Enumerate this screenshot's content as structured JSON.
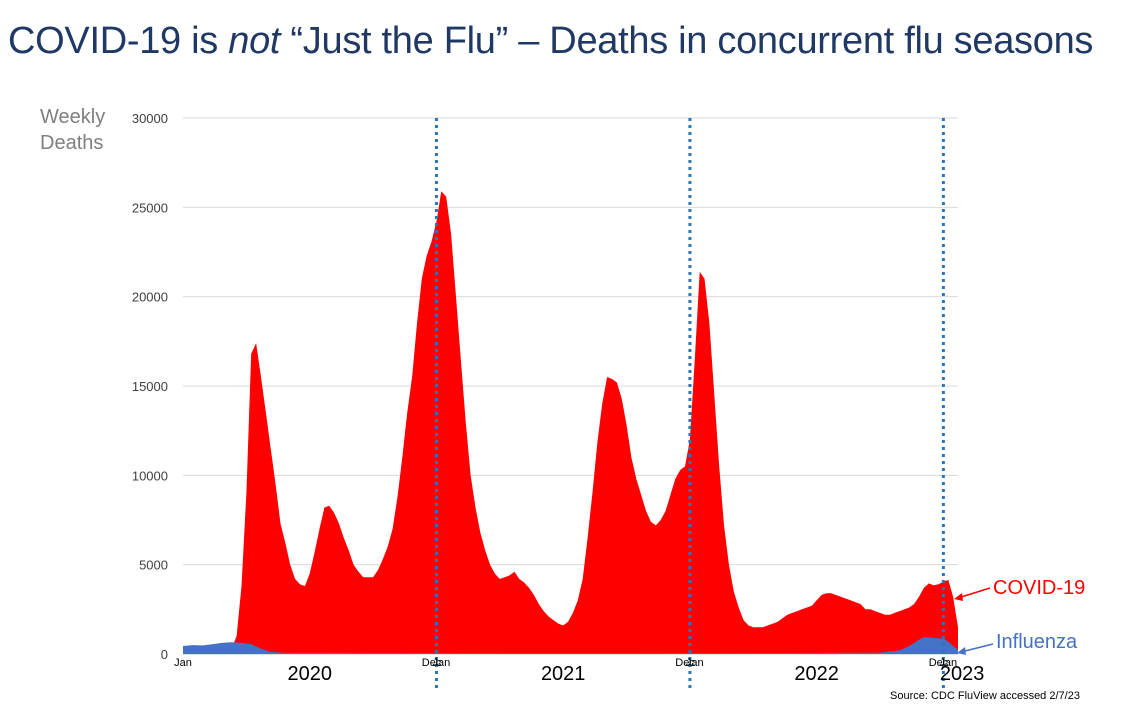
{
  "slide": {
    "title_prefix": "COVID-19 is ",
    "title_emph": "not",
    "title_suffix": " “Just the Flu” – Deaths in concurrent flu seasons",
    "source": "Source: CDC FluView accessed 2/7/23"
  },
  "chart_data": {
    "type": "area",
    "ylabel": "Weekly Deaths",
    "ylim": [
      0,
      30000
    ],
    "yticks": [
      0,
      5000,
      10000,
      15000,
      20000,
      25000,
      30000
    ],
    "grid": true,
    "x_start": "2020-01-05",
    "x_end": "2023-01-22",
    "x_tick_labels": [
      {
        "date": "2020-01-05",
        "label": "Jan"
      },
      {
        "date": "2020-12-27",
        "label": "Dec"
      },
      {
        "date": "2021-01-10",
        "label": "Jan"
      },
      {
        "date": "2021-12-26",
        "label": "Dec"
      },
      {
        "date": "2022-01-09",
        "label": "Jan"
      },
      {
        "date": "2022-12-25",
        "label": "Dec"
      },
      {
        "date": "2023-01-08",
        "label": "Jan"
      }
    ],
    "year_labels": [
      {
        "date": "2020-07-05",
        "label": "2020"
      },
      {
        "date": "2021-07-04",
        "label": "2021"
      },
      {
        "date": "2022-07-03",
        "label": "2022"
      },
      {
        "date": "2023-01-28",
        "label": "2023"
      }
    ],
    "season_markers": [
      "2021-01-03",
      "2022-01-02",
      "2023-01-01"
    ],
    "series": [
      {
        "name": "COVID-19",
        "color": "#ff0000",
        "points": [
          [
            "2020-03-01",
            0
          ],
          [
            "2020-03-15",
            300
          ],
          [
            "2020-03-22",
            1000
          ],
          [
            "2020-03-29",
            3800
          ],
          [
            "2020-04-05",
            9000
          ],
          [
            "2020-04-12",
            16800
          ],
          [
            "2020-04-19",
            17400
          ],
          [
            "2020-04-26",
            15500
          ],
          [
            "2020-05-03",
            13500
          ],
          [
            "2020-05-10",
            11500
          ],
          [
            "2020-05-17",
            9500
          ],
          [
            "2020-05-24",
            7300
          ],
          [
            "2020-05-31",
            6200
          ],
          [
            "2020-06-07",
            5000
          ],
          [
            "2020-06-14",
            4200
          ],
          [
            "2020-06-21",
            3900
          ],
          [
            "2020-06-28",
            3800
          ],
          [
            "2020-07-05",
            4500
          ],
          [
            "2020-07-12",
            5700
          ],
          [
            "2020-07-19",
            7000
          ],
          [
            "2020-07-26",
            8200
          ],
          [
            "2020-08-02",
            8300
          ],
          [
            "2020-08-09",
            7900
          ],
          [
            "2020-08-16",
            7300
          ],
          [
            "2020-08-23",
            6500
          ],
          [
            "2020-08-30",
            5800
          ],
          [
            "2020-09-06",
            5000
          ],
          [
            "2020-09-13",
            4600
          ],
          [
            "2020-09-20",
            4300
          ],
          [
            "2020-09-27",
            4300
          ],
          [
            "2020-10-04",
            4300
          ],
          [
            "2020-10-11",
            4700
          ],
          [
            "2020-10-18",
            5300
          ],
          [
            "2020-10-25",
            6000
          ],
          [
            "2020-11-01",
            7000
          ],
          [
            "2020-11-08",
            8800
          ],
          [
            "2020-11-15",
            11000
          ],
          [
            "2020-11-22",
            13500
          ],
          [
            "2020-11-29",
            15500
          ],
          [
            "2020-12-06",
            18500
          ],
          [
            "2020-12-13",
            21000
          ],
          [
            "2020-12-20",
            22300
          ],
          [
            "2020-12-27",
            23100
          ],
          [
            "2021-01-03",
            24200
          ],
          [
            "2021-01-10",
            25900
          ],
          [
            "2021-01-17",
            25600
          ],
          [
            "2021-01-24",
            23500
          ],
          [
            "2021-01-31",
            20000
          ],
          [
            "2021-02-07",
            16500
          ],
          [
            "2021-02-14",
            13000
          ],
          [
            "2021-02-21",
            10000
          ],
          [
            "2021-02-28",
            8200
          ],
          [
            "2021-03-07",
            6800
          ],
          [
            "2021-03-14",
            5800
          ],
          [
            "2021-03-21",
            5000
          ],
          [
            "2021-03-28",
            4500
          ],
          [
            "2021-04-04",
            4200
          ],
          [
            "2021-04-11",
            4300
          ],
          [
            "2021-04-18",
            4400
          ],
          [
            "2021-04-25",
            4600
          ],
          [
            "2021-05-02",
            4200
          ],
          [
            "2021-05-09",
            4000
          ],
          [
            "2021-05-16",
            3700
          ],
          [
            "2021-05-23",
            3300
          ],
          [
            "2021-05-30",
            2800
          ],
          [
            "2021-06-06",
            2400
          ],
          [
            "2021-06-13",
            2100
          ],
          [
            "2021-06-20",
            1900
          ],
          [
            "2021-06-27",
            1700
          ],
          [
            "2021-07-04",
            1600
          ],
          [
            "2021-07-11",
            1800
          ],
          [
            "2021-07-18",
            2300
          ],
          [
            "2021-07-25",
            3000
          ],
          [
            "2021-08-01",
            4200
          ],
          [
            "2021-08-08",
            6500
          ],
          [
            "2021-08-15",
            9000
          ],
          [
            "2021-08-22",
            11800
          ],
          [
            "2021-08-29",
            14000
          ],
          [
            "2021-09-05",
            15500
          ],
          [
            "2021-09-12",
            15400
          ],
          [
            "2021-09-19",
            15200
          ],
          [
            "2021-09-26",
            14300
          ],
          [
            "2021-10-03",
            12800
          ],
          [
            "2021-10-10",
            11000
          ],
          [
            "2021-10-17",
            9800
          ],
          [
            "2021-10-24",
            8900
          ],
          [
            "2021-10-31",
            8000
          ],
          [
            "2021-11-07",
            7400
          ],
          [
            "2021-11-14",
            7200
          ],
          [
            "2021-11-21",
            7500
          ],
          [
            "2021-11-28",
            8000
          ],
          [
            "2021-12-05",
            8900
          ],
          [
            "2021-12-12",
            9800
          ],
          [
            "2021-12-19",
            10300
          ],
          [
            "2021-12-26",
            10500
          ],
          [
            "2022-01-02",
            12000
          ],
          [
            "2022-01-09",
            16500
          ],
          [
            "2022-01-16",
            21400
          ],
          [
            "2022-01-23",
            21000
          ],
          [
            "2022-01-30",
            18500
          ],
          [
            "2022-02-06",
            14500
          ],
          [
            "2022-02-13",
            10500
          ],
          [
            "2022-02-20",
            7200
          ],
          [
            "2022-02-27",
            5000
          ],
          [
            "2022-03-06",
            3500
          ],
          [
            "2022-03-13",
            2600
          ],
          [
            "2022-03-20",
            1900
          ],
          [
            "2022-03-27",
            1600
          ],
          [
            "2022-04-03",
            1500
          ],
          [
            "2022-04-10",
            1500
          ],
          [
            "2022-04-17",
            1500
          ],
          [
            "2022-04-24",
            1600
          ],
          [
            "2022-05-01",
            1700
          ],
          [
            "2022-05-08",
            1800
          ],
          [
            "2022-05-15",
            2000
          ],
          [
            "2022-05-22",
            2200
          ],
          [
            "2022-05-29",
            2300
          ],
          [
            "2022-06-05",
            2400
          ],
          [
            "2022-06-12",
            2500
          ],
          [
            "2022-06-19",
            2600
          ],
          [
            "2022-06-26",
            2700
          ],
          [
            "2022-07-03",
            3000
          ],
          [
            "2022-07-10",
            3300
          ],
          [
            "2022-07-17",
            3400
          ],
          [
            "2022-07-24",
            3400
          ],
          [
            "2022-07-31",
            3300
          ],
          [
            "2022-08-07",
            3200
          ],
          [
            "2022-08-14",
            3100
          ],
          [
            "2022-08-21",
            3000
          ],
          [
            "2022-08-28",
            2900
          ],
          [
            "2022-09-04",
            2800
          ],
          [
            "2022-09-11",
            2500
          ],
          [
            "2022-09-18",
            2500
          ],
          [
            "2022-09-25",
            2400
          ],
          [
            "2022-10-02",
            2300
          ],
          [
            "2022-10-09",
            2200
          ],
          [
            "2022-10-16",
            2200
          ],
          [
            "2022-10-23",
            2300
          ],
          [
            "2022-10-30",
            2400
          ],
          [
            "2022-11-06",
            2500
          ],
          [
            "2022-11-13",
            2600
          ],
          [
            "2022-11-20",
            2800
          ],
          [
            "2022-11-27",
            3200
          ],
          [
            "2022-12-04",
            3700
          ],
          [
            "2022-12-11",
            3950
          ],
          [
            "2022-12-18",
            3850
          ],
          [
            "2022-12-25",
            3900
          ],
          [
            "2023-01-01",
            4050
          ],
          [
            "2023-01-08",
            4150
          ],
          [
            "2023-01-15",
            3200
          ],
          [
            "2023-01-22",
            1500
          ]
        ]
      },
      {
        "name": "Influenza",
        "color": "#4472c4",
        "points": [
          [
            "2020-01-05",
            450
          ],
          [
            "2020-01-19",
            500
          ],
          [
            "2020-02-02",
            480
          ],
          [
            "2020-02-16",
            550
          ],
          [
            "2020-03-01",
            620
          ],
          [
            "2020-03-15",
            660
          ],
          [
            "2020-03-29",
            620
          ],
          [
            "2020-04-12",
            550
          ],
          [
            "2020-04-26",
            300
          ],
          [
            "2020-05-10",
            120
          ],
          [
            "2020-05-31",
            60
          ],
          [
            "2021-06-01",
            40
          ],
          [
            "2022-06-01",
            50
          ],
          [
            "2022-10-02",
            80
          ],
          [
            "2022-10-30",
            200
          ],
          [
            "2022-11-13",
            450
          ],
          [
            "2022-11-27",
            800
          ],
          [
            "2022-12-04",
            950
          ],
          [
            "2022-12-18",
            900
          ],
          [
            "2023-01-01",
            850
          ],
          [
            "2023-01-08",
            700
          ],
          [
            "2023-01-15",
            450
          ],
          [
            "2023-01-22",
            250
          ]
        ]
      }
    ]
  }
}
